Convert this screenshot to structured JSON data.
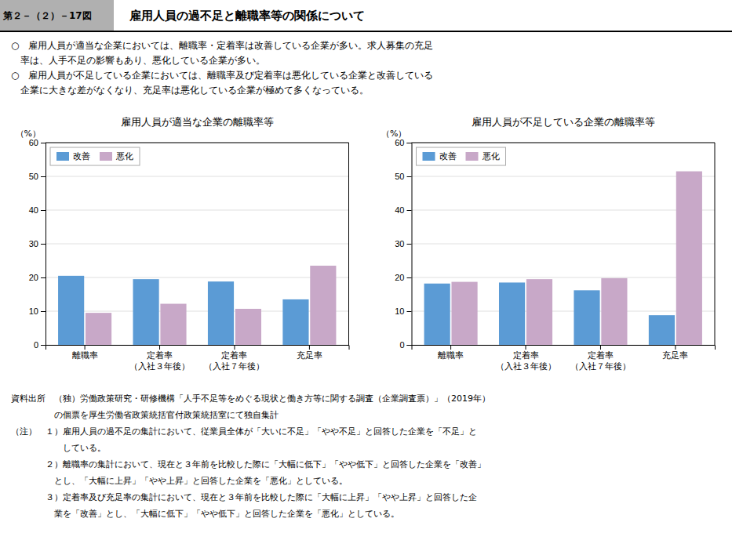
{
  "label": "第２－（２）－17図",
  "title": "　雇用人員の過不足と離職率等の関係について",
  "annotations": [
    "○　雇用人員が適当な企業においては、離職率・定着率は改善している企業が多い。求人募集の充足",
    "　率は、人手不足の影響もあり、悪化している企業が多い。",
    "○　雇用人員が不足している企業においては、離職率及び定着率は悪化している企業と改善している",
    "　企業に大きな差がなくなり、充足率は悪化している企業が極めて多くなっている。"
  ],
  "notes": [
    "資料出所　（独）労働政策研究・研修機構「人手不足等をめぐる現状と働き方等に関する調査（企業調査票）」（2019年）",
    "　　　　　の個票を厚生労働省政策統括官付政策統括室にて独自集計",
    "（注）　１）雇用人員の過不足の集計において、従業員全体が「大いに不足」「やや不足」と回答した企業を「不足」と",
    "　　　　　　している。",
    "　　　　２）離職率の集計において、現在と３年前を比較した際に「大幅に低下」「やや低下」と回答した企業を「改善」",
    "　　　　　とし、「大幅に上昇」「やや上昇」と回答した企業を「悪化」としている。",
    "　　　　３）定着率及び充足率の集計において、現在と３年前を比較した際に「大幅に上昇」「やや上昇」と回答した企",
    "　　　　　業を「改善」とし、「大幅に低下」「やや低下」と回答した企業を「悪化」としている。"
  ],
  "chart_data": [
    {
      "type": "bar",
      "title": "雇用人員が適当な企業の離職率等",
      "categories": [
        "離職率",
        "定着率\n（入社３年後）",
        "定着率\n（入社７年後）",
        "充足率"
      ],
      "series": [
        {
          "name": "改善",
          "color": "#5B9BD5",
          "values": [
            20.5,
            19.5,
            18.8,
            13.5
          ]
        },
        {
          "name": "悪化",
          "color": "#C8A8C8",
          "values": [
            9.5,
            12.2,
            10.7,
            23.5
          ]
        }
      ],
      "ylabel": "（%）",
      "ylim": [
        0,
        60
      ],
      "yticks": [
        0,
        10,
        20,
        30,
        40,
        50,
        60
      ],
      "grid": true,
      "legend": "upper left"
    },
    {
      "type": "bar",
      "title": "雇用人員が不足している企業の離職率等",
      "categories": [
        "離職率",
        "定着率\n（入社３年後）",
        "定着率\n（入社７年後）",
        "充足率"
      ],
      "series": [
        {
          "name": "改善",
          "color": "#5B9BD5",
          "values": [
            18.2,
            18.5,
            16.2,
            8.8
          ]
        },
        {
          "name": "悪化",
          "color": "#C8A8C8",
          "values": [
            18.7,
            19.5,
            19.8,
            51.5
          ]
        }
      ],
      "ylabel": "（%）",
      "ylim": [
        0,
        60
      ],
      "yticks": [
        0,
        10,
        20,
        30,
        40,
        50,
        60
      ],
      "grid": true,
      "legend": "upper left"
    }
  ]
}
